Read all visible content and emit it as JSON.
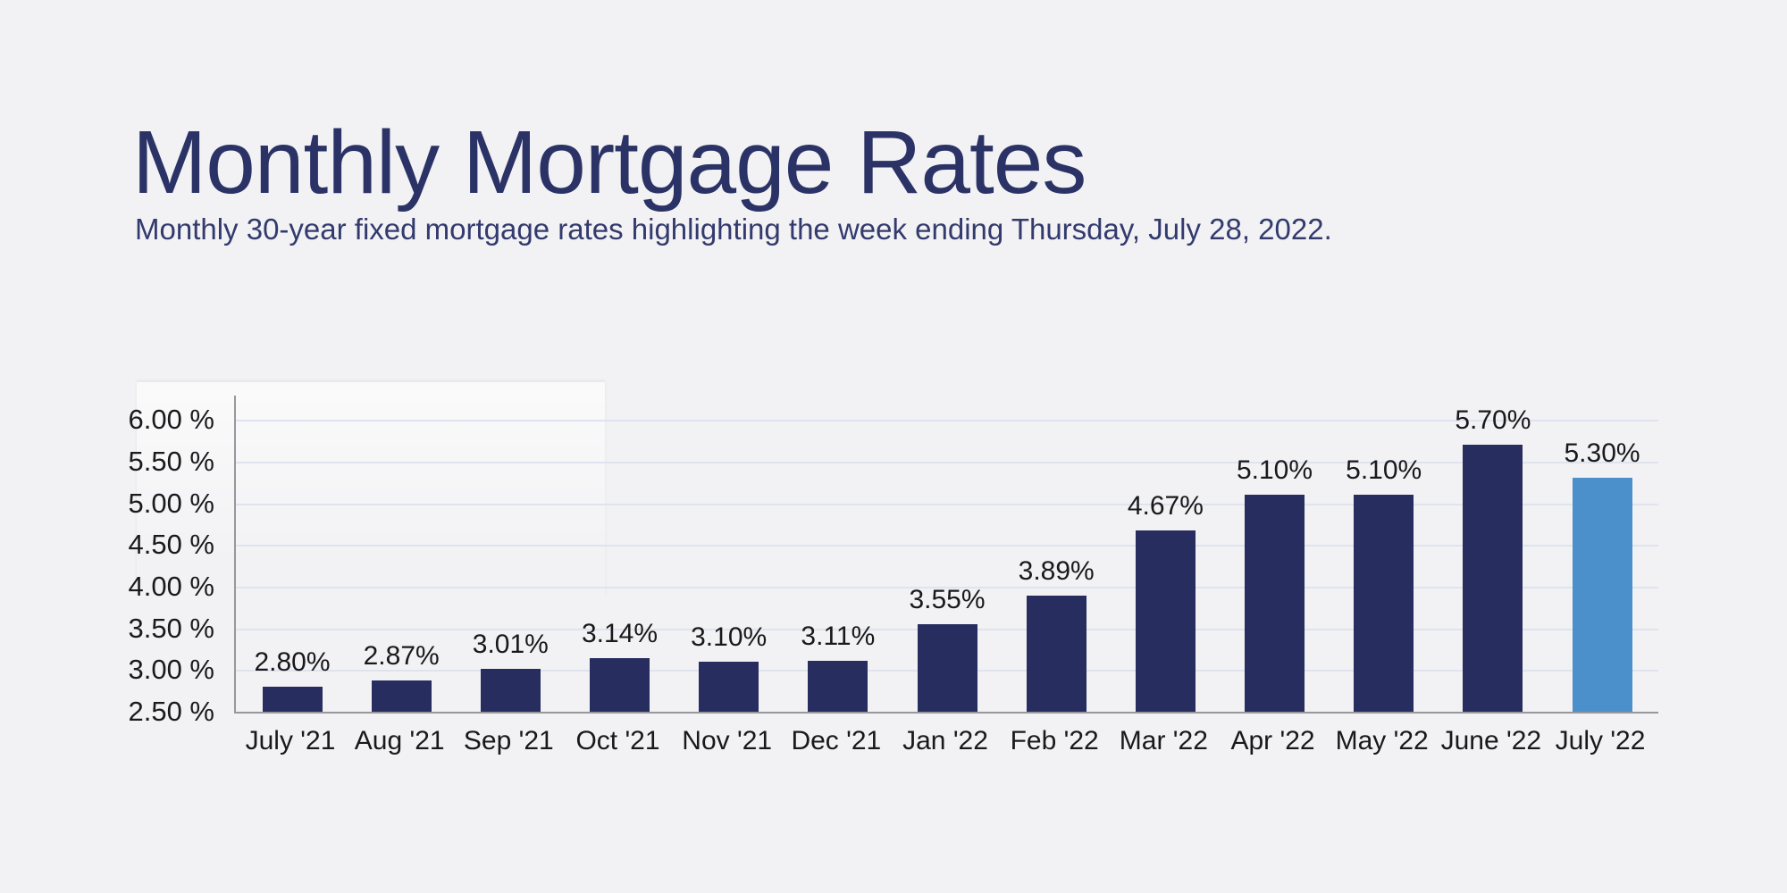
{
  "page": {
    "background_color": "#f2f2f4"
  },
  "header": {
    "title": "Monthly Mortgage Rates",
    "subtitle": "Monthly 30-year fixed mortgage rates highlighting the week ending Thursday, July 28, 2022."
  },
  "chart_data": {
    "type": "bar",
    "title": "Monthly Mortgage Rates",
    "subtitle": "Monthly 30-year fixed mortgage rates highlighting the week ending Thursday, July 28, 2022.",
    "categories": [
      "July '21",
      "Aug '21",
      "Sep '21",
      "Oct '21",
      "Nov '21",
      "Dec '21",
      "Jan '22",
      "Feb '22",
      "Mar '22",
      "Apr '22",
      "May '22",
      "June '22",
      "July '22"
    ],
    "values": [
      2.8,
      2.87,
      3.01,
      3.14,
      3.1,
      3.11,
      3.55,
      3.89,
      4.67,
      5.1,
      5.1,
      5.7,
      5.3
    ],
    "value_labels": [
      "2.80%",
      "2.87%",
      "3.01%",
      "3.14%",
      "3.10%",
      "3.11%",
      "3.55%",
      "3.89%",
      "4.67%",
      "5.10%",
      "5.10%",
      "5.70%",
      "5.30%"
    ],
    "highlighted_category": "July '22",
    "highlight_index": 12,
    "y_ticks": [
      "6.00 %",
      "5.50 %",
      "5.00 %",
      "4.50 %",
      "4.00 %",
      "3.50 %",
      "3.00 %",
      "2.50 %"
    ],
    "y_tick_values": [
      6.0,
      5.5,
      5.0,
      4.5,
      4.0,
      3.5,
      3.0,
      2.5
    ],
    "ylim": [
      2.5,
      6.0
    ],
    "xlabel": "",
    "ylabel": "",
    "grid": true,
    "legend_position": "none",
    "colors": {
      "bar": "#272d5f",
      "highlighted_bar": "#4b8fcb",
      "gridline": "#dfe3f0",
      "axis": "#97979c",
      "title_text": "#2b3366",
      "label_text": "#19191b"
    }
  }
}
